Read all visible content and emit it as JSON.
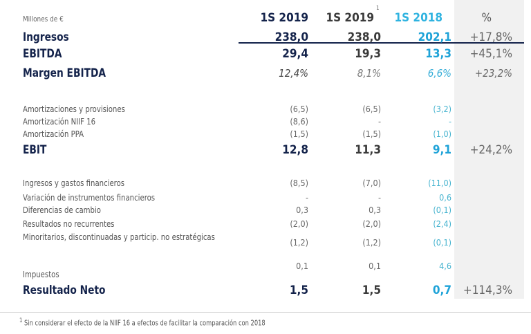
{
  "header": {
    "units": "Millones de €",
    "columns": [
      "1S 2019",
      "1S 2019",
      "1S 2018",
      "%"
    ],
    "col2_footnote_mark": "1"
  },
  "colors": {
    "navy": "#14234b",
    "accent": "#1fa3d8",
    "shade": "#f1f1f1"
  },
  "rows": [
    {
      "label": "Ingresos",
      "values": [
        "238,0",
        "238,0",
        "202,1",
        "+17,8%"
      ]
    },
    {
      "label": "EBITDA",
      "values": [
        "29,4",
        "19,3",
        "13,3",
        "+45,1%"
      ]
    },
    {
      "label": "Margen EBITDA",
      "values": [
        "12,4%",
        "8,1%",
        "6,6%",
        "+23,2%"
      ]
    },
    {
      "label": "Amortizaciones y provisiones",
      "values": [
        "(6,5)",
        "(6,5)",
        "(3,2)",
        ""
      ]
    },
    {
      "label": "Amortización NIIF 16",
      "values": [
        "(8,6)",
        "-",
        "-",
        ""
      ]
    },
    {
      "label": "Amortización PPA",
      "values": [
        "(1,5)",
        "(1,5)",
        "(1,0)",
        ""
      ]
    },
    {
      "label": "EBIT",
      "values": [
        "12,8",
        "11,3",
        "9,1",
        "+24,2%"
      ]
    },
    {
      "label": "Ingresos y gastos financieros",
      "values": [
        "(8,5)",
        "(7,0)",
        "(11,0)",
        ""
      ]
    },
    {
      "label": "Variación de instrumentos financieros",
      "values": [
        "-",
        "-",
        "0,6",
        ""
      ]
    },
    {
      "label": "Diferencias de cambio",
      "values": [
        "0,3",
        "0,3",
        "(0,1)",
        ""
      ]
    },
    {
      "label": "Resultados no recurrentes",
      "values": [
        "(2,0)",
        "(2,0)",
        "(2,4)",
        ""
      ]
    },
    {
      "label": "Minoritarios, discontinuadas y particip. no estratégicas",
      "values": [
        "(1,2)",
        "(1,2)",
        "(0,1)",
        ""
      ]
    },
    {
      "label": "Impuestos",
      "values": [
        "0,1",
        "0,1",
        "4,6",
        ""
      ]
    },
    {
      "label": "Resultado Neto",
      "values": [
        "1,5",
        "1,5",
        "0,7",
        "+114,3%"
      ]
    }
  ],
  "footnote": {
    "mark": "1",
    "text": "Sin considerar el efecto de la NIIF 16 a efectos de facilitar la comparación con 2018"
  }
}
